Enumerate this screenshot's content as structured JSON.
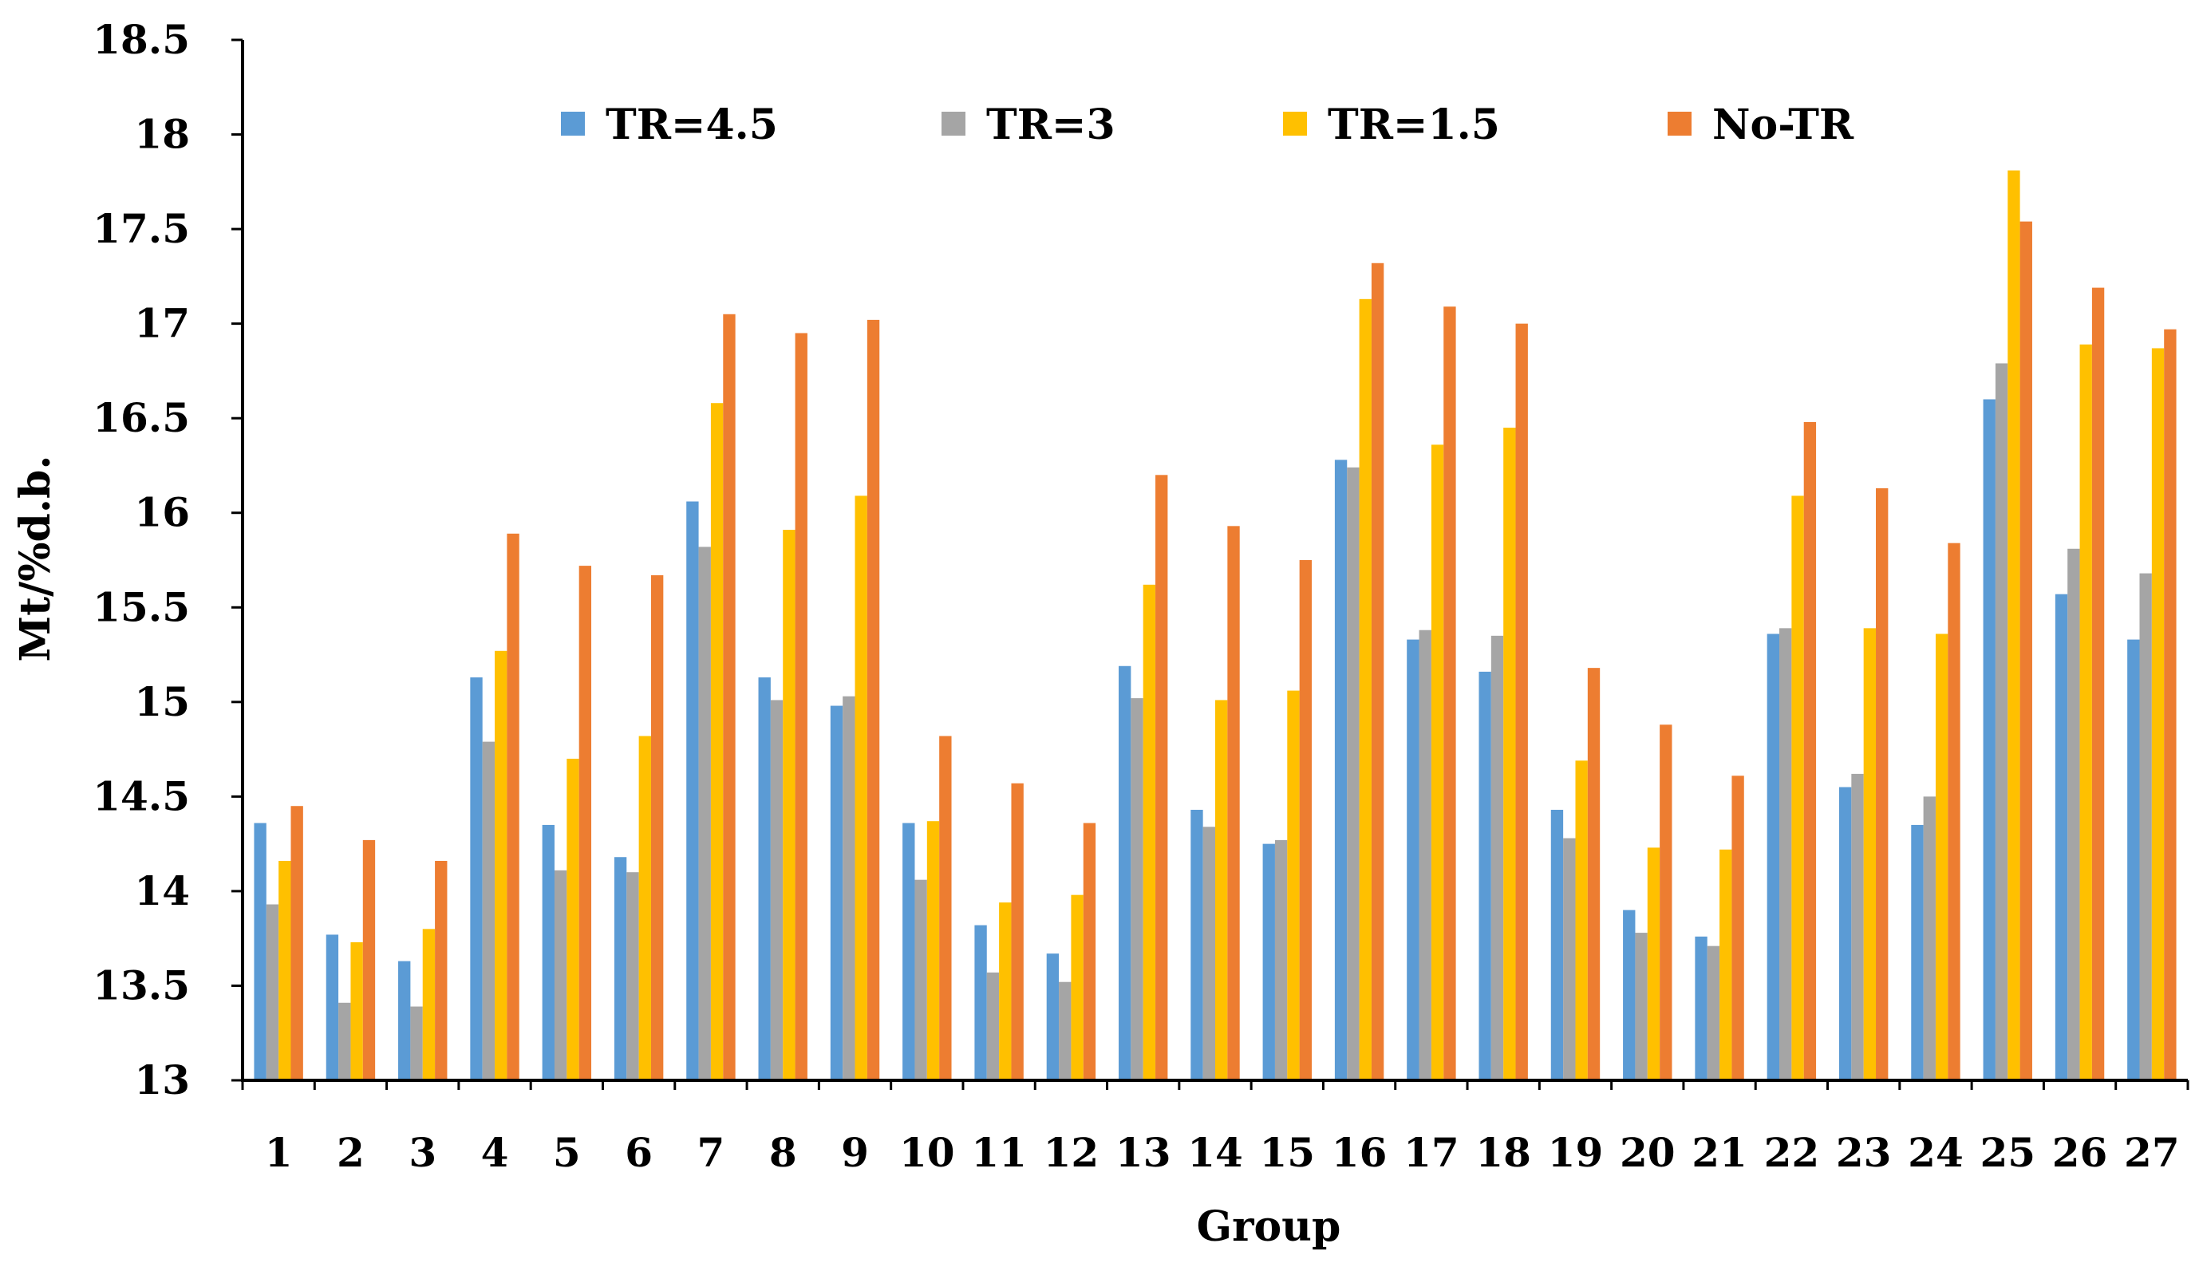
{
  "chart_data": {
    "type": "bar",
    "title": "",
    "xlabel": "Group",
    "ylabel": "Mt/%d.b.",
    "ylim": [
      13,
      18.5
    ],
    "yticks": [
      "13",
      "13.5",
      "14",
      "14.5",
      "15",
      "15.5",
      "16",
      "16.5",
      "17",
      "17.5",
      "18",
      "18.5"
    ],
    "grid": false,
    "legend_position": "top",
    "categories": [
      "1",
      "2",
      "3",
      "4",
      "5",
      "6",
      "7",
      "8",
      "9",
      "10",
      "11",
      "12",
      "13",
      "14",
      "15",
      "16",
      "17",
      "18",
      "19",
      "20",
      "21",
      "22",
      "23",
      "24",
      "25",
      "26",
      "27"
    ],
    "series": [
      {
        "name": "TR=4.5",
        "color": "#5B9BD5",
        "values": [
          14.36,
          13.77,
          13.63,
          15.13,
          14.35,
          14.18,
          16.06,
          15.13,
          14.98,
          14.36,
          13.82,
          13.67,
          15.19,
          14.43,
          14.25,
          16.28,
          15.33,
          15.16,
          14.43,
          13.9,
          13.76,
          15.36,
          14.55,
          14.35,
          16.6,
          15.57,
          15.33
        ]
      },
      {
        "name": "TR=3",
        "color": "#A5A5A5",
        "values": [
          13.93,
          13.41,
          13.39,
          14.79,
          14.11,
          14.1,
          15.82,
          15.01,
          15.03,
          14.06,
          13.57,
          13.52,
          15.02,
          14.34,
          14.27,
          16.24,
          15.38,
          15.35,
          14.28,
          13.78,
          13.71,
          15.39,
          14.62,
          14.5,
          16.79,
          15.81,
          15.68
        ]
      },
      {
        "name": "TR=1.5",
        "color": "#FFC000",
        "values": [
          14.16,
          13.73,
          13.8,
          15.27,
          14.7,
          14.82,
          16.58,
          15.91,
          16.09,
          14.37,
          13.94,
          13.98,
          15.62,
          15.01,
          15.06,
          17.13,
          16.36,
          16.45,
          14.69,
          14.23,
          14.22,
          16.09,
          15.39,
          15.36,
          17.81,
          16.89,
          16.87
        ]
      },
      {
        "name": "No-TR",
        "color": "#ED7D31",
        "values": [
          14.45,
          14.27,
          14.16,
          15.89,
          15.72,
          15.67,
          17.05,
          16.95,
          17.02,
          14.82,
          14.57,
          14.36,
          16.2,
          15.93,
          15.75,
          17.32,
          17.09,
          17.0,
          15.18,
          14.88,
          14.61,
          16.48,
          16.13,
          15.84,
          17.54,
          17.19,
          16.97
        ]
      }
    ]
  }
}
